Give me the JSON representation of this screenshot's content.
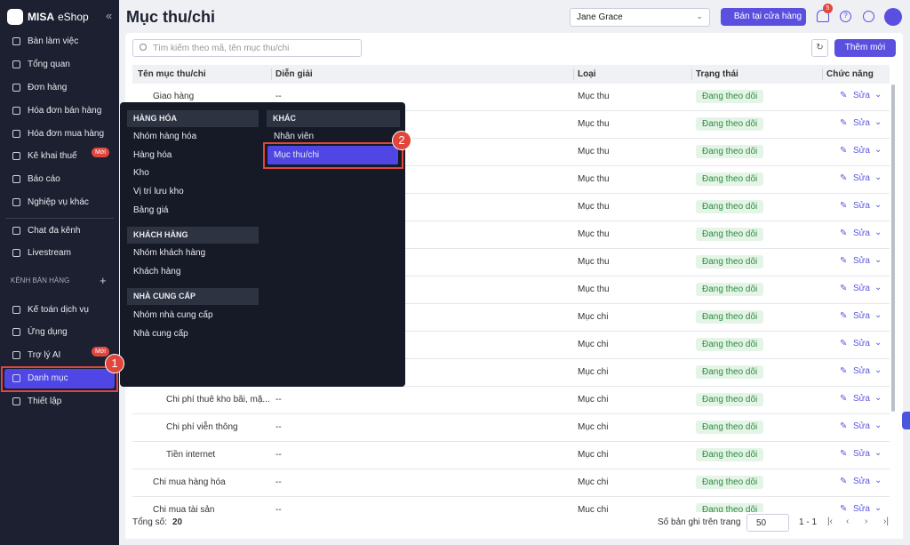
{
  "sidebar": {
    "logo": "MISA",
    "logo_suffix": "eShop",
    "items": [
      {
        "label": "Bàn làm việc"
      },
      {
        "label": "Tổng quan"
      },
      {
        "label": "Đơn hàng"
      },
      {
        "label": "Hóa đơn bán hàng"
      },
      {
        "label": "Hóa đơn mua hàng"
      },
      {
        "label": "Kê khai thuế",
        "badge": "Mới"
      },
      {
        "label": "Báo cáo"
      },
      {
        "label": "Nghiệp vụ khác"
      },
      {
        "label": "Chat đa kênh"
      },
      {
        "label": "Livestream"
      },
      {
        "label": "Kế toán dịch vụ"
      },
      {
        "label": "Ứng dụng"
      },
      {
        "label": "Trợ lý AI",
        "badge": "Mới"
      },
      {
        "label": "Danh mục"
      },
      {
        "label": "Thiết lập"
      }
    ],
    "section": "KÊNH BÁN HÀNG"
  },
  "header": {
    "title": "Mục thu/chi",
    "store": "Jane Grace",
    "sell_button": "Bán tại cửa hàng",
    "notifications": 5
  },
  "toolbar": {
    "search_placeholder": "Tìm kiếm theo mã, tên mục thu/chi",
    "add_button": "Thêm mới"
  },
  "table": {
    "columns": [
      "Tên mục thu/chi",
      "Diễn giải",
      "Loại",
      "Trạng thái",
      "Chức năng"
    ],
    "rows": [
      {
        "name": "Giao hàng",
        "description": "--",
        "type": "Mục thu",
        "status": "Đang theo dõi",
        "action": "Sửa"
      },
      {
        "type": "Mục thu",
        "status": "Đang theo dõi",
        "action": "Sửa"
      },
      {
        "type": "Mục thu",
        "status": "Đang theo dõi",
        "action": "Sửa"
      },
      {
        "type": "Mục thu",
        "status": "Đang theo dõi",
        "action": "Sửa"
      },
      {
        "type": "Mục thu",
        "status": "Đang theo dõi",
        "action": "Sửa"
      },
      {
        "type": "Mục thu",
        "status": "Đang theo dõi",
        "action": "Sửa"
      },
      {
        "type": "Mục thu",
        "status": "Đang theo dõi",
        "action": "Sửa"
      },
      {
        "type": "Mục thu",
        "status": "Đang theo dõi",
        "action": "Sửa"
      },
      {
        "type": "Mục chi",
        "status": "Đang theo dõi",
        "action": "Sửa"
      },
      {
        "type": "Mục chi",
        "status": "Đang theo dõi",
        "action": "Sửa"
      },
      {
        "type": "Mục chi",
        "status": "Đang theo dõi",
        "action": "Sửa"
      },
      {
        "name": "Chi phí thuê kho bãi, mặ...",
        "description": "--",
        "type": "Mục chi",
        "status": "Đang theo dõi",
        "action": "Sửa"
      },
      {
        "name": "Chi phí viễn thông",
        "description": "--",
        "type": "Mục chi",
        "status": "Đang theo dõi",
        "action": "Sửa"
      },
      {
        "name": "Tiền internet",
        "description": "--",
        "type": "Mục chi",
        "status": "Đang theo dõi",
        "action": "Sửa"
      },
      {
        "name": "Chi mua hàng hóa",
        "description": "--",
        "type": "Mục chi",
        "status": "Đang theo dõi",
        "action": "Sửa"
      },
      {
        "name": "Chi mua tài sản",
        "description": "--",
        "type": "Mục chi",
        "status": "Đang theo dõi",
        "action": "Sửa"
      }
    ]
  },
  "footer": {
    "total_label": "Tổng số:",
    "total": 20,
    "page_size_label": "Số bản ghi trên trang",
    "page_size": 50,
    "range": "1 - 1"
  },
  "popup": {
    "groups": [
      {
        "title": "HÀNG HÓA",
        "items": [
          "Nhóm hàng hóa",
          "Hàng hóa",
          "Kho",
          "Vị trí lưu kho",
          "Bảng giá"
        ]
      },
      {
        "title": "KHÁCH HÀNG",
        "items": [
          "Nhóm khách hàng",
          "Khách hàng"
        ]
      },
      {
        "title": "NHÀ CUNG CẤP",
        "items": [
          "Nhóm nhà cung cấp",
          "Nhà cung cấp"
        ]
      }
    ],
    "other": {
      "title": "KHÁC",
      "items": [
        "Nhân viên",
        "Mục thu/chi"
      ]
    }
  },
  "callouts": [
    "1",
    "2"
  ]
}
